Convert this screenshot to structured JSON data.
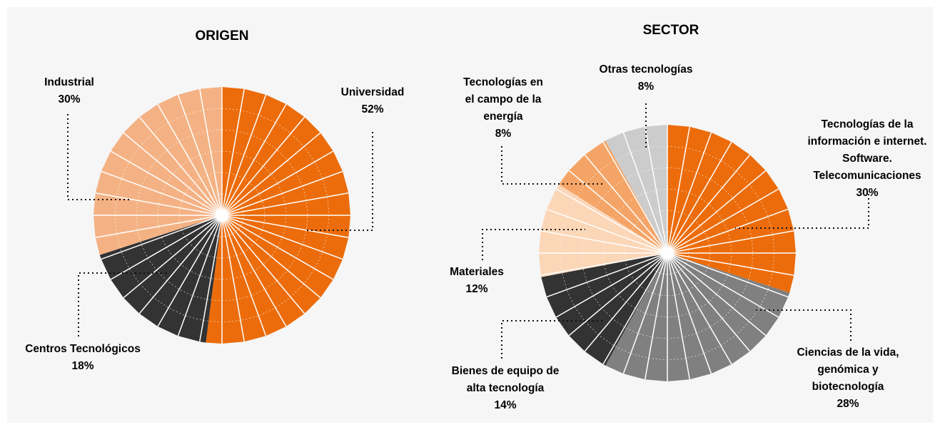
{
  "chart_data": [
    {
      "type": "pie",
      "title": "ORIGEN",
      "categories": [
        "Universidad",
        "Centros Tecnológicos",
        "Industrial"
      ],
      "values": [
        52,
        18,
        30
      ],
      "value_labels": [
        "52%",
        "18%",
        "30%"
      ],
      "colors": [
        "#ec6c0b",
        "#333333",
        "#f4b284"
      ]
    },
    {
      "type": "pie",
      "title": "SECTOR",
      "categories": [
        "Tecnologías de la información e internet. Software. Telecomunicaciones",
        "Ciencias de la vida, genómica y biotecnología",
        "Bienes de equipo de alta tecnología",
        "Materiales",
        "Tecnologías en el campo de la energía",
        "Otras tecnologías"
      ],
      "values": [
        30,
        28,
        14,
        12,
        8,
        8
      ],
      "value_labels": [
        "30%",
        "28%",
        "14%",
        "12%",
        "8%",
        "8%"
      ],
      "colors": [
        "#ec6c0b",
        "#808080",
        "#333333",
        "#fbd6b7",
        "#f4a466",
        "#cccccc"
      ]
    }
  ]
}
